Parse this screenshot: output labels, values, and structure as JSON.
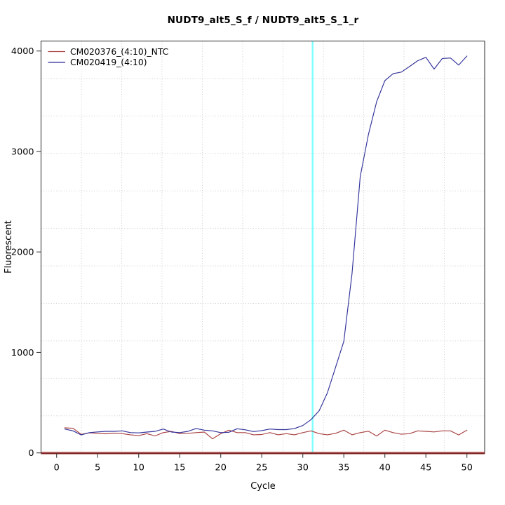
{
  "chart_data": {
    "type": "line",
    "title": "NUDT9_alt5_S_f / NUDT9_alt5_S_1_r",
    "xlabel": "Cycle",
    "ylabel": "Fluorescent",
    "xlim": [
      0,
      50
    ],
    "ylim": [
      0,
      4000
    ],
    "x_ticks": [
      0,
      5,
      10,
      15,
      20,
      25,
      30,
      35,
      40,
      45,
      50
    ],
    "y_ticks": [
      0,
      1000,
      2000,
      3000,
      4000
    ],
    "grid": {
      "style": "dotted",
      "color": "#c7c7c7",
      "divisions_x": 11,
      "divisions_y": 11
    },
    "legend_position": "top-left",
    "x": [
      1,
      2,
      3,
      4,
      5,
      6,
      7,
      8,
      9,
      10,
      11,
      12,
      13,
      14,
      15,
      16,
      17,
      18,
      19,
      20,
      21,
      22,
      23,
      24,
      25,
      26,
      27,
      28,
      29,
      30,
      31,
      32,
      33,
      34,
      35,
      36,
      37,
      38,
      39,
      40,
      41,
      42,
      43,
      44,
      45,
      46,
      47,
      48,
      49,
      50
    ],
    "series": [
      {
        "name": "CM020376_(4:10)_NTC",
        "color": "#a94343",
        "values": [
          249,
          245,
          184,
          200,
          195,
          190,
          196,
          191,
          180,
          172,
          191,
          169,
          202,
          214,
          191,
          195,
          202,
          207,
          140,
          191,
          226,
          202,
          202,
          180,
          183,
          202,
          180,
          191,
          180,
          202,
          219,
          191,
          180,
          195,
          226,
          180,
          202,
          216,
          168,
          226,
          202,
          186,
          191,
          219,
          214,
          209,
          219,
          219,
          179,
          226
        ]
      },
      {
        "name": "CM020419_(4:10)",
        "color": "#32329b",
        "values": [
          237,
          219,
          179,
          202,
          209,
          214,
          214,
          219,
          202,
          199,
          207,
          214,
          237,
          207,
          202,
          214,
          243,
          226,
          219,
          202,
          205,
          240,
          230,
          212,
          222,
          237,
          232,
          232,
          243,
          272,
          331,
          420,
          598,
          854,
          1110,
          1785,
          2751,
          3169,
          3495,
          3705,
          3774,
          3790,
          3845,
          3903,
          3937,
          3820,
          3925,
          3930,
          3860,
          3950
        ]
      }
    ],
    "threshold_line": {
      "orientation": "vertical",
      "x": 31.2,
      "color": "#80ffff"
    },
    "zero_line": {
      "value": 0,
      "color": "#7c1d1d",
      "color_top": "#b05252"
    },
    "frame_color": "#3c3c3c",
    "text_color": "#000000"
  }
}
